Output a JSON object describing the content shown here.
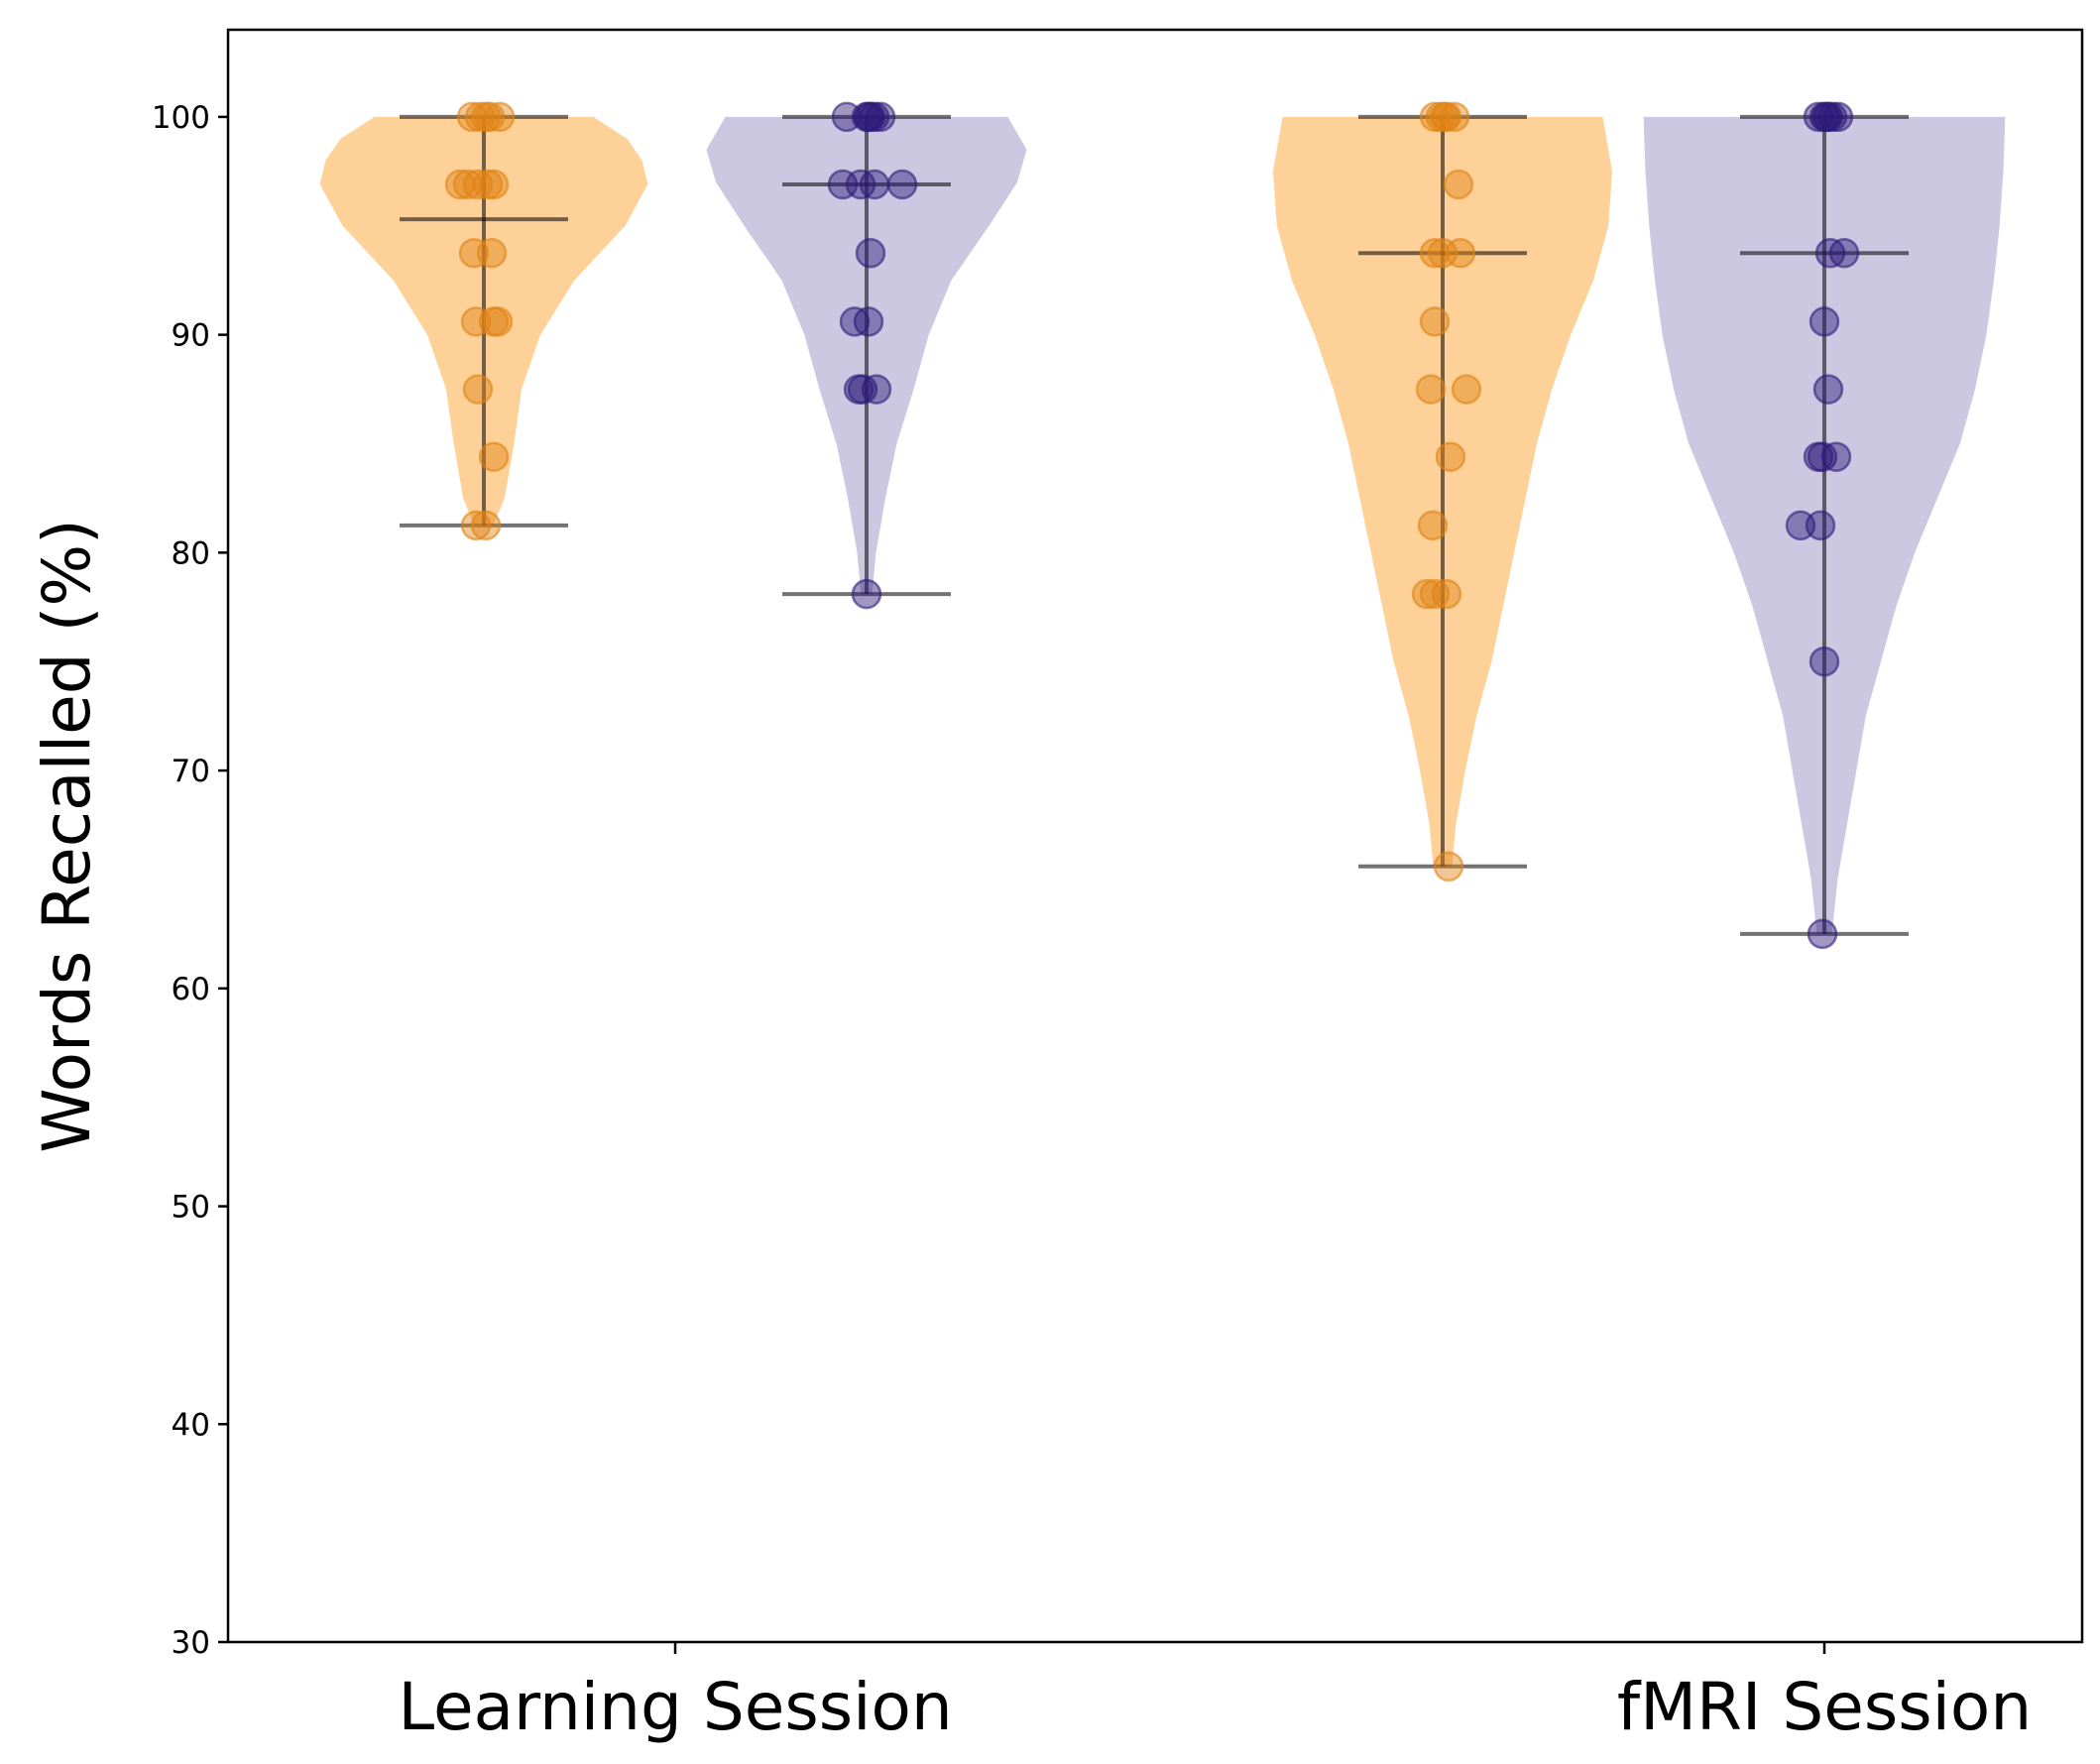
{
  "chart_data": {
    "type": "violin",
    "ylabel": "Words Recalled (%)",
    "ylim": [
      30,
      104
    ],
    "yticks": [
      30,
      40,
      50,
      60,
      70,
      80,
      90,
      100
    ],
    "categories": [
      "Learning Session",
      "fMRI Session"
    ],
    "grid": false,
    "legend": "none",
    "groups": [
      {
        "category": "Learning Session",
        "violins": [
          {
            "color": "#fdb863",
            "point_color": "#e08214",
            "min": 81.25,
            "max": 100,
            "mean": 95.3,
            "density": [
              [
                81.25,
                0.05
              ],
              [
                82.5,
                0.11
              ],
              [
                85,
                0.16
              ],
              [
                87.5,
                0.2
              ],
              [
                90,
                0.3
              ],
              [
                92.5,
                0.48
              ],
              [
                95,
                0.75
              ],
              [
                96.9,
                0.87
              ],
              [
                98,
                0.84
              ],
              [
                99,
                0.76
              ],
              [
                100,
                0.58
              ]
            ],
            "points": [
              [
                -0.3,
                100
              ],
              [
                -0.1,
                100
              ],
              [
                0.15,
                100
              ],
              [
                0.4,
                100
              ],
              [
                0.05,
                100
              ],
              [
                -0.4,
                96.9
              ],
              [
                -0.15,
                96.9
              ],
              [
                0.1,
                96.9
              ],
              [
                0.25,
                96.9
              ],
              [
                -0.6,
                96.9
              ],
              [
                -0.25,
                93.75
              ],
              [
                0.2,
                93.75
              ],
              [
                -0.2,
                90.6
              ],
              [
                0.25,
                90.6
              ],
              [
                0.35,
                90.6
              ],
              [
                -0.15,
                87.5
              ],
              [
                0.25,
                84.4
              ],
              [
                -0.2,
                81.25
              ],
              [
                0.05,
                81.25
              ]
            ]
          },
          {
            "color": "#b2abd2",
            "point_color": "#2d1b7a",
            "min": 78.1,
            "max": 100,
            "mean": 96.9,
            "density": [
              [
                78.1,
                0.03
              ],
              [
                80,
                0.05
              ],
              [
                82.5,
                0.1
              ],
              [
                85,
                0.16
              ],
              [
                87.5,
                0.25
              ],
              [
                90,
                0.33
              ],
              [
                92.5,
                0.45
              ],
              [
                95,
                0.65
              ],
              [
                97,
                0.8
              ],
              [
                98.5,
                0.85
              ],
              [
                100,
                0.75
              ]
            ],
            "points": [
              [
                -0.5,
                100
              ],
              [
                0,
                100
              ],
              [
                0.1,
                100
              ],
              [
                0.2,
                100
              ],
              [
                0.35,
                100
              ],
              [
                0.05,
                100
              ],
              [
                -0.6,
                96.9
              ],
              [
                -0.15,
                96.9
              ],
              [
                0.2,
                96.9
              ],
              [
                0.9,
                96.9
              ],
              [
                0.1,
                93.75
              ],
              [
                -0.3,
                90.6
              ],
              [
                0.05,
                90.6
              ],
              [
                -0.2,
                87.5
              ],
              [
                -0.1,
                87.5
              ],
              [
                0.25,
                87.5
              ],
              [
                0,
                78.1
              ]
            ]
          }
        ]
      },
      {
        "category": "fMRI Session",
        "violins": [
          {
            "color": "#fdb863",
            "point_color": "#e08214",
            "min": 65.6,
            "max": 100,
            "mean": 93.75,
            "density": [
              [
                65.6,
                0.05
              ],
              [
                67.5,
                0.07
              ],
              [
                70,
                0.12
              ],
              [
                72.5,
                0.18
              ],
              [
                75,
                0.26
              ],
              [
                77.5,
                0.32
              ],
              [
                80,
                0.38
              ],
              [
                82.5,
                0.44
              ],
              [
                85,
                0.5
              ],
              [
                87.5,
                0.58
              ],
              [
                90,
                0.68
              ],
              [
                92.5,
                0.8
              ],
              [
                95,
                0.88
              ],
              [
                97.5,
                0.9
              ],
              [
                100,
                0.85
              ]
            ],
            "points": [
              [
                -0.2,
                100
              ],
              [
                -0.05,
                100
              ],
              [
                0.1,
                100
              ],
              [
                0.3,
                100
              ],
              [
                0.05,
                100
              ],
              [
                0.4,
                96.9
              ],
              [
                -0.2,
                93.75
              ],
              [
                0,
                93.75
              ],
              [
                0.45,
                93.75
              ],
              [
                -0.2,
                90.6
              ],
              [
                -0.3,
                87.5
              ],
              [
                0.6,
                87.5
              ],
              [
                0.2,
                84.4
              ],
              [
                -0.25,
                81.25
              ],
              [
                -0.4,
                78.1
              ],
              [
                -0.2,
                78.1
              ],
              [
                0.1,
                78.1
              ],
              [
                0.15,
                65.6
              ]
            ]
          },
          {
            "color": "#b2abd2",
            "point_color": "#2d1b7a",
            "min": 62.5,
            "max": 100,
            "mean": 93.75,
            "density": [
              [
                62.5,
                0.04
              ],
              [
                65,
                0.07
              ],
              [
                67.5,
                0.12
              ],
              [
                70,
                0.17
              ],
              [
                72.5,
                0.22
              ],
              [
                75,
                0.3
              ],
              [
                77.5,
                0.38
              ],
              [
                80,
                0.48
              ],
              [
                82.5,
                0.6
              ],
              [
                85,
                0.72
              ],
              [
                87.5,
                0.8
              ],
              [
                90,
                0.86
              ],
              [
                92.5,
                0.9
              ],
              [
                95,
                0.93
              ],
              [
                97.5,
                0.95
              ],
              [
                100,
                0.96
              ]
            ],
            "points": [
              [
                -0.15,
                100
              ],
              [
                0,
                100
              ],
              [
                0.1,
                100
              ],
              [
                0.2,
                100
              ],
              [
                0.35,
                100
              ],
              [
                0.05,
                100
              ],
              [
                0.15,
                93.75
              ],
              [
                0.5,
                93.75
              ],
              [
                0,
                90.6
              ],
              [
                0.1,
                87.5
              ],
              [
                -0.15,
                84.4
              ],
              [
                -0.05,
                84.4
              ],
              [
                0.3,
                84.4
              ],
              [
                -0.6,
                81.25
              ],
              [
                -0.1,
                81.25
              ],
              [
                0,
                75
              ],
              [
                -0.05,
                62.5
              ]
            ]
          }
        ]
      }
    ]
  }
}
